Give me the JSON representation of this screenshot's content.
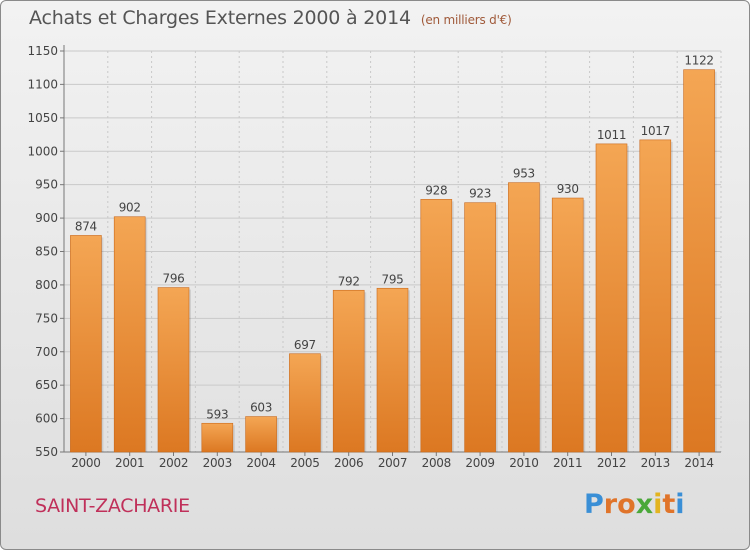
{
  "title": "Achats et Charges Externes 2000 à 2014",
  "unit": "(en milliers d'€)",
  "place": "SAINT-ZACHARIE",
  "brand": "Proxiti",
  "colors": {
    "bar_light": "#f4a654",
    "bar_dark": "#dc7822",
    "label": "#444444",
    "grid": "#c9c9c9",
    "place": "#c0305a"
  },
  "chart_data": {
    "type": "bar",
    "categories": [
      "2000",
      "2001",
      "2002",
      "2003",
      "2004",
      "2005",
      "2006",
      "2007",
      "2008",
      "2009",
      "2010",
      "2011",
      "2012",
      "2013",
      "2014"
    ],
    "values": [
      874,
      902,
      796,
      593,
      603,
      697,
      792,
      795,
      928,
      923,
      953,
      930,
      1011,
      1017,
      1122
    ],
    "title": "Achats et Charges Externes 2000 à 2014",
    "ylim": [
      550,
      1150
    ],
    "yticks": [
      550,
      600,
      650,
      700,
      750,
      800,
      850,
      900,
      950,
      1000,
      1050,
      1100,
      1150
    ],
    "grid": true,
    "data_labels": true
  }
}
